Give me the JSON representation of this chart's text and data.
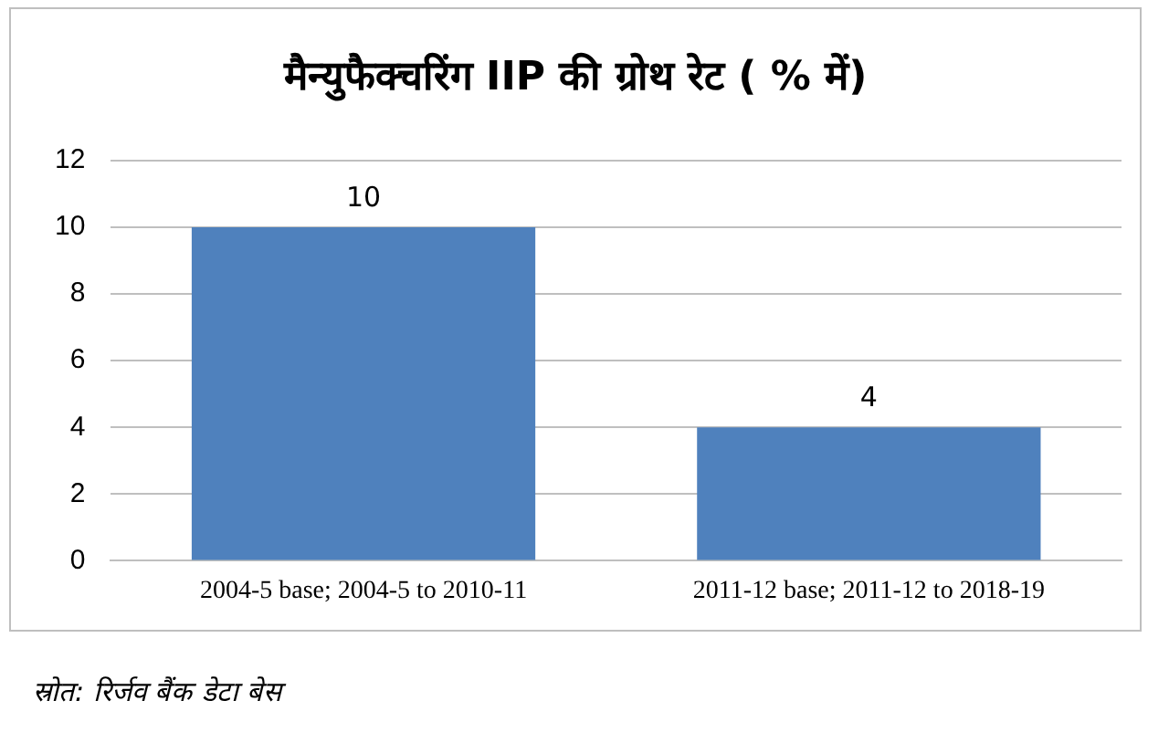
{
  "chart_data": {
    "type": "bar",
    "title": "मैन्युफैक्चरिंग IIP की ग्रोथ रेट ( % में)",
    "categories": [
      "2004-5 base; 2004-5 to 2010-11",
      "2011-12 base; 2011-12 to 2018-19"
    ],
    "values": [
      10,
      4
    ],
    "color": "#4f81bd",
    "ylim": [
      0,
      12
    ],
    "yticks": [
      0,
      2,
      4,
      6,
      8,
      10,
      12
    ],
    "grid": "y",
    "data_labels": true,
    "legend": false,
    "annotations": [
      "स्रोत: रिर्जव बैंक डेटा बेस"
    ]
  }
}
